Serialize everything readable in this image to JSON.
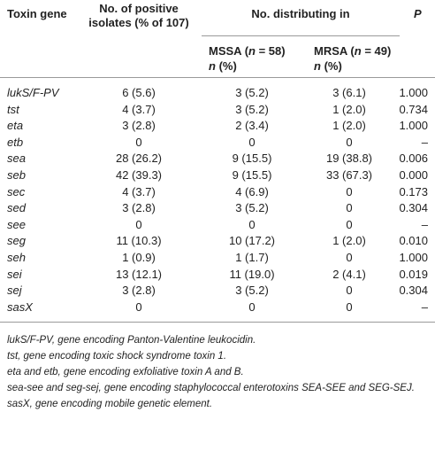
{
  "header": {
    "gene": "Toxin gene",
    "positive": "No. of positive isolates (% of 107)",
    "distributing": "No. distributing in",
    "mssa": [
      "MSSA (",
      "n",
      " = 58)"
    ],
    "mssa_unit": [
      "n",
      " (%)"
    ],
    "mrsa": [
      "MRSA (",
      "n",
      " = 49)"
    ],
    "mrsa_unit": [
      "n",
      " (%)"
    ],
    "p": "P"
  },
  "table": {
    "rows": [
      [
        "lukS/F-PV",
        "6 (5.6)",
        "3 (5.2)",
        "3 (6.1)",
        "1.000"
      ],
      [
        "tst",
        "4 (3.7)",
        "3 (5.2)",
        "1 (2.0)",
        "0.734"
      ],
      [
        "eta",
        "3 (2.8)",
        "2 (3.4)",
        "1 (2.0)",
        "1.000"
      ],
      [
        "etb",
        "0",
        "0",
        "0",
        "–"
      ],
      [
        "sea",
        "28 (26.2)",
        "9 (15.5)",
        "19 (38.8)",
        "0.006"
      ],
      [
        "seb",
        "42 (39.3)",
        "9 (15.5)",
        "33 (67.3)",
        "0.000"
      ],
      [
        "sec",
        "4 (3.7)",
        "4 (6.9)",
        "0",
        "0.173"
      ],
      [
        "sed",
        "3 (2.8)",
        "3 (5.2)",
        "0",
        "0.304"
      ],
      [
        "see",
        "0",
        "0",
        "0",
        "–"
      ],
      [
        "seg",
        "11 (10.3)",
        "10 (17.2)",
        "1 (2.0)",
        "0.010"
      ],
      [
        "seh",
        "1 (0.9)",
        "1 (1.7)",
        "0",
        "1.000"
      ],
      [
        "sei",
        "13 (12.1)",
        "11 (19.0)",
        "2 (4.1)",
        "0.019"
      ],
      [
        "sej",
        "3 (2.8)",
        "3 (5.2)",
        "0",
        "0.304"
      ],
      [
        "sasX",
        "0",
        "0",
        "0",
        "–"
      ]
    ]
  },
  "footnotes": [
    "lukS/F-PV, gene encoding Panton-Valentine leukocidin.",
    "tst, gene encoding toxic shock syndrome toxin 1.",
    "eta and etb, gene encoding exfoliative toxin A and B.",
    "sea-see and seg-sej, gene encoding staphylococcal enterotoxins SEA-SEE and SEG-SEJ.",
    "sasX, gene encoding mobile genetic element."
  ]
}
